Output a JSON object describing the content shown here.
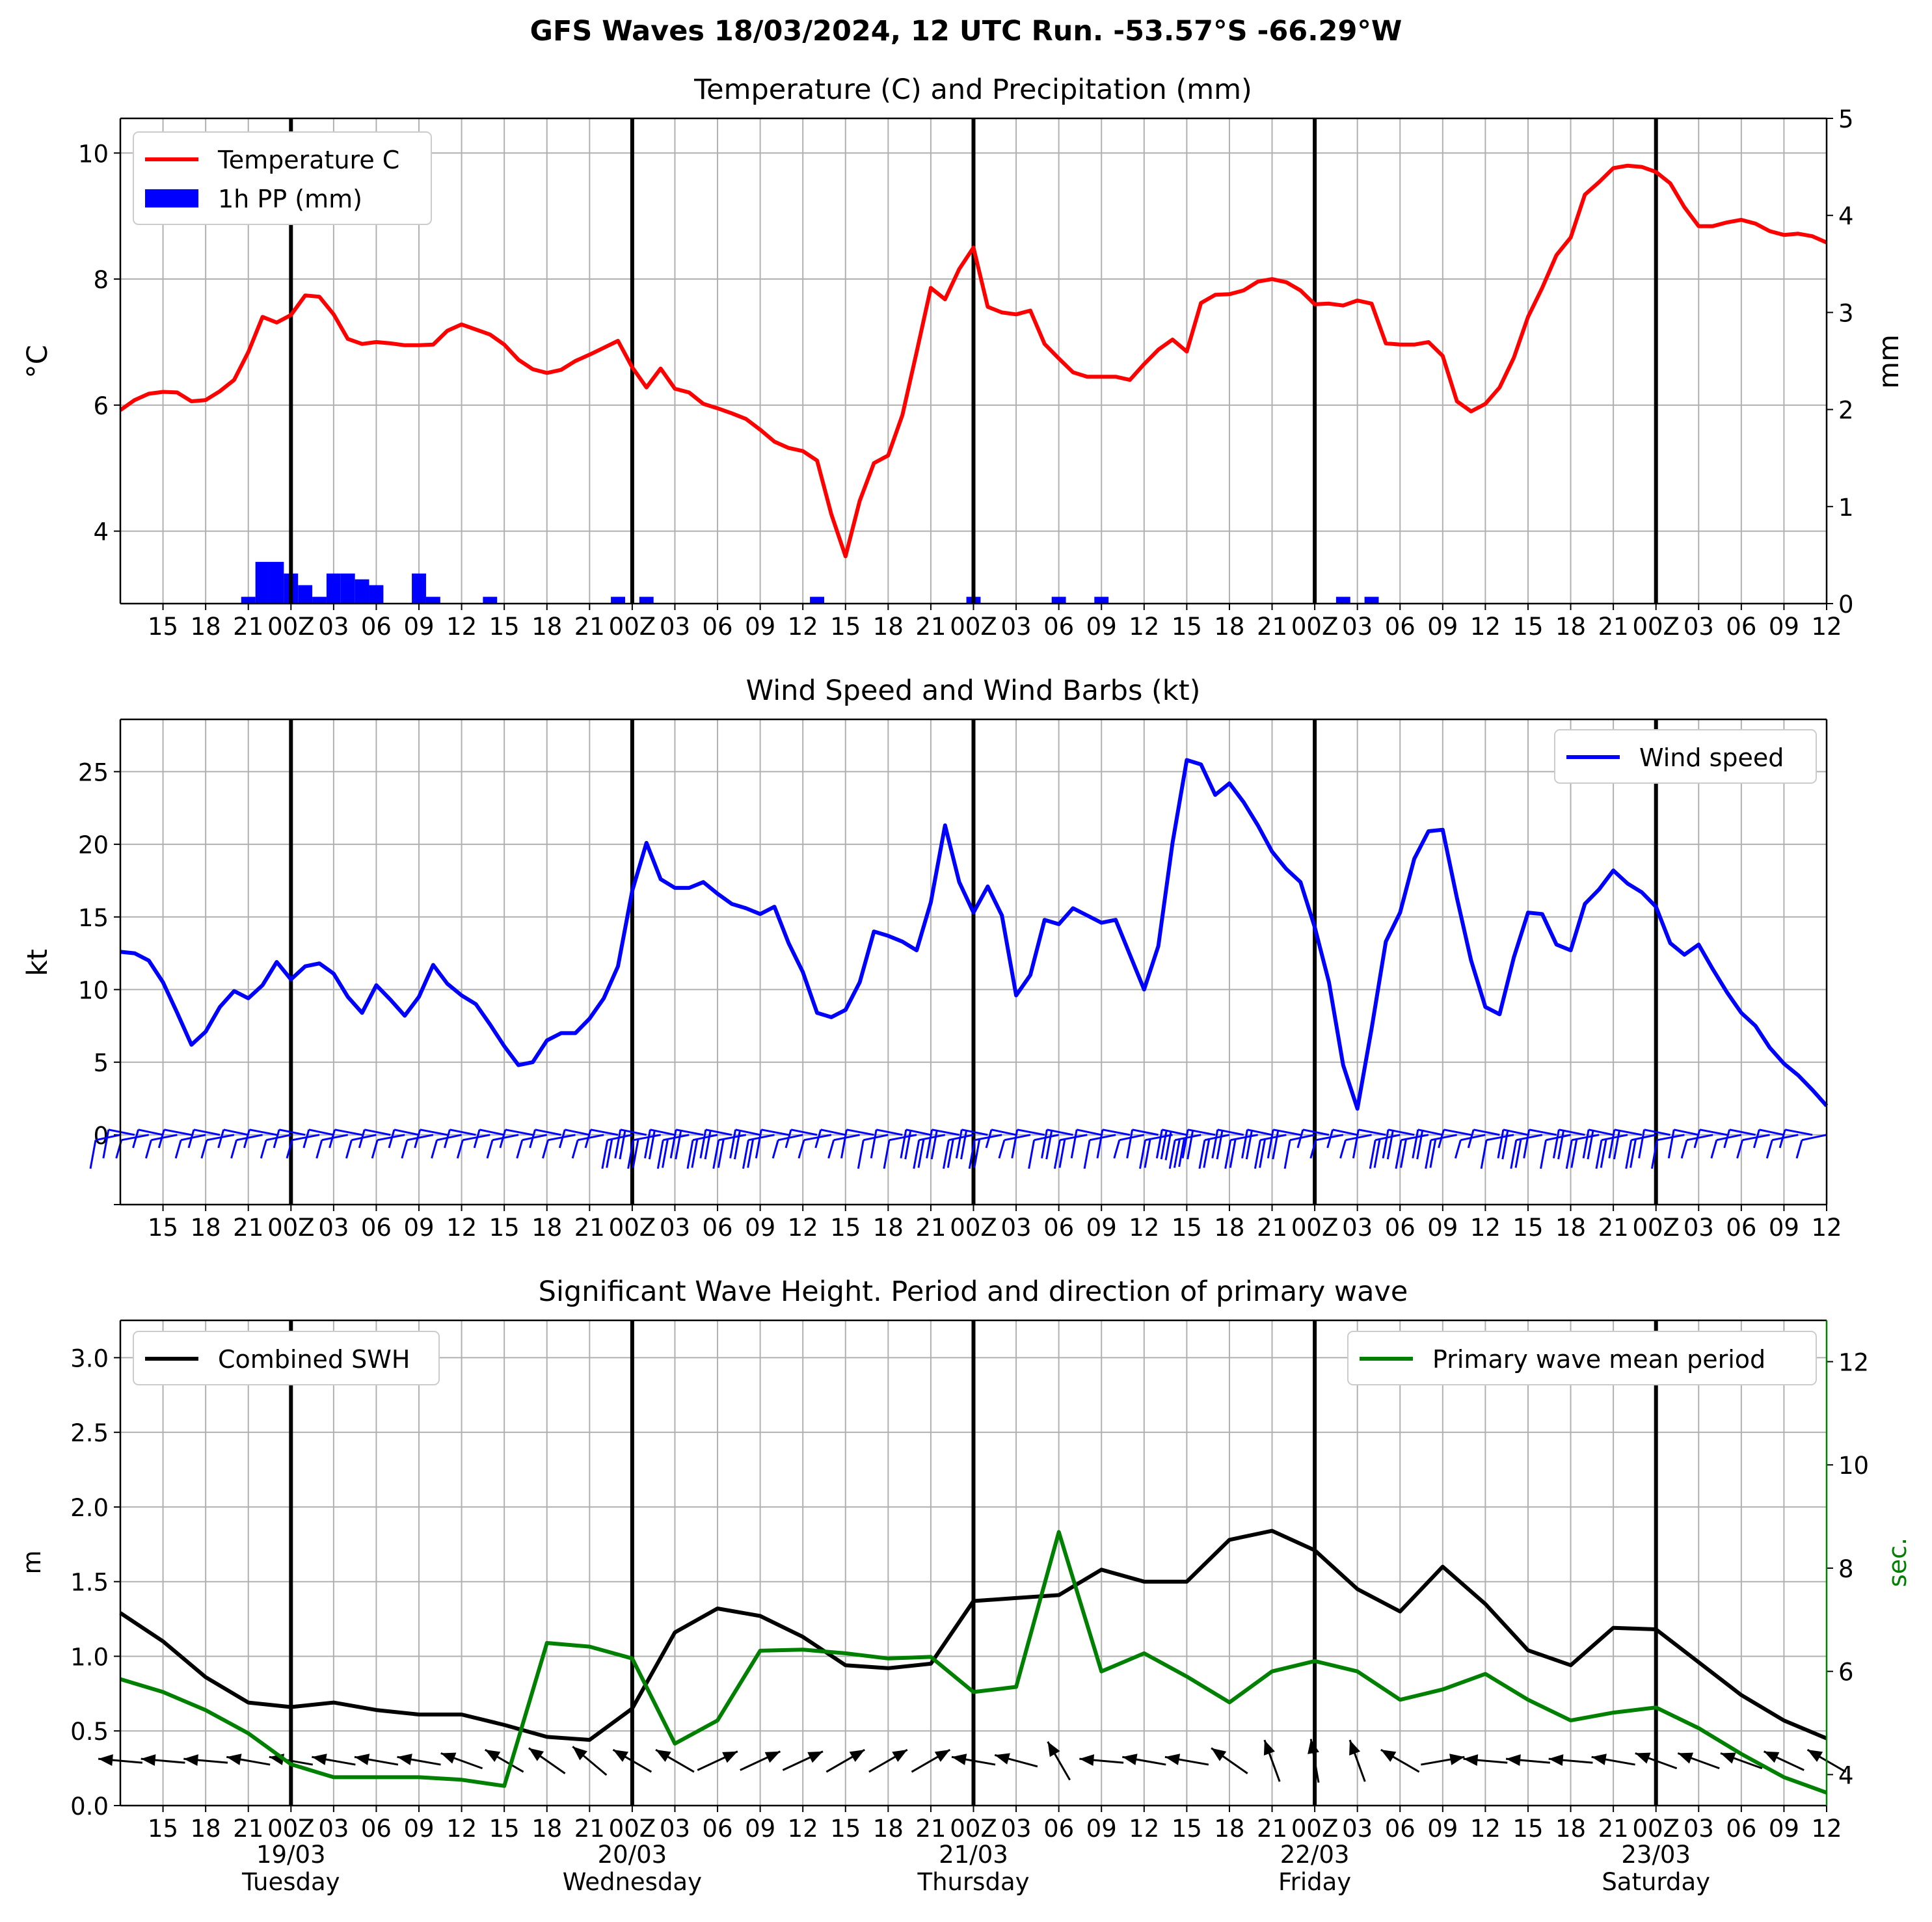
{
  "figure": {
    "suptitle": "GFS Waves 18/03/2024, 12 UTC Run. -53.57°S -66.29°W"
  },
  "time_axis": {
    "tick_labels": [
      "15",
      "18",
      "21",
      "00Z",
      "03",
      "06",
      "09",
      "12",
      "15",
      "18",
      "21",
      "00Z",
      "03",
      "06",
      "09",
      "12",
      "15",
      "18",
      "21",
      "00Z",
      "03",
      "06",
      "09",
      "12",
      "15",
      "18",
      "21",
      "00Z",
      "03",
      "06",
      "09",
      "12",
      "15",
      "18",
      "21",
      "00Z",
      "03",
      "06",
      "09",
      "12"
    ],
    "day_labels": [
      {
        "date": "19/03",
        "weekday": "Tuesday"
      },
      {
        "date": "20/03",
        "weekday": "Wednesday"
      },
      {
        "date": "21/03",
        "weekday": "Thursday"
      },
      {
        "date": "22/03",
        "weekday": "Friday"
      },
      {
        "date": "23/03",
        "weekday": "Saturday"
      }
    ]
  },
  "chart_data": [
    {
      "type": "line",
      "title": "Temperature (C) and Precipitation (mm)",
      "x_unit": "hours from 18/03/2024 12 UTC",
      "ylabel": "$^\\circ$C",
      "ylabel_text": "°C",
      "ylim": [
        2.85,
        10.55
      ],
      "yticks": [
        "4",
        "6",
        "8",
        "10"
      ],
      "y2label": "mm",
      "y2lim": [
        0,
        5
      ],
      "y2ticks": [
        "0",
        "1",
        "2",
        "3",
        "4",
        "5"
      ],
      "legend": [
        "Temperature C",
        "1h PP (mm)"
      ],
      "colors": {
        "temperature": "#ff0000",
        "precip": "#0000ff"
      },
      "series": [
        {
          "name": "Temperature C",
          "x": [
            0,
            1,
            2,
            3,
            4,
            5,
            6,
            7,
            8,
            9,
            10,
            11,
            12,
            13,
            14,
            15,
            16,
            17,
            18,
            19,
            20,
            21,
            22,
            23,
            24,
            25,
            26,
            27,
            28,
            29,
            30,
            31,
            32,
            33,
            34,
            35,
            36,
            37,
            38,
            39,
            40,
            41,
            42,
            43,
            44,
            45,
            46,
            47,
            48,
            49,
            50,
            51,
            52,
            53,
            54,
            55,
            56,
            57,
            58,
            59,
            60,
            61,
            62,
            63,
            64,
            65,
            66,
            67,
            68,
            69,
            70,
            71,
            72,
            73,
            74,
            75,
            76,
            77,
            78,
            79,
            80,
            81,
            82,
            83,
            84,
            85,
            86,
            87,
            88,
            89,
            90,
            91,
            92,
            93,
            94,
            95,
            96,
            97,
            98,
            99,
            100,
            101,
            102,
            103,
            104,
            105,
            106,
            107,
            108,
            109,
            110,
            111,
            112,
            113,
            114,
            115,
            116,
            117,
            118,
            119,
            120
          ],
          "values": [
            5.92,
            6.08,
            6.18,
            6.21,
            6.2,
            6.06,
            6.08,
            6.22,
            6.4,
            6.84,
            7.4,
            7.31,
            7.43,
            7.74,
            7.72,
            7.44,
            7.05,
            6.97,
            7.0,
            6.98,
            6.95,
            6.95,
            6.96,
            7.18,
            7.28,
            7.2,
            7.12,
            6.96,
            6.72,
            6.57,
            6.51,
            6.56,
            6.7,
            6.8,
            6.91,
            7.02,
            6.6,
            6.28,
            6.58,
            6.26,
            6.2,
            6.02,
            5.95,
            5.87,
            5.78,
            5.61,
            5.42,
            5.32,
            5.27,
            5.12,
            4.27,
            3.6,
            4.48,
            5.08,
            5.2,
            5.84,
            6.84,
            7.86,
            7.68,
            8.16,
            8.5,
            7.56,
            7.47,
            7.44,
            7.5,
            6.97,
            6.74,
            6.52,
            6.45,
            6.45,
            6.45,
            6.4,
            6.65,
            6.88,
            7.04,
            6.85,
            7.62,
            7.75,
            7.76,
            7.82,
            7.96,
            8.0,
            7.95,
            7.82,
            7.6,
            7.61,
            7.58,
            7.66,
            7.61,
            6.98,
            6.96,
            6.96,
            7.0,
            6.78,
            6.06,
            5.9,
            6.02,
            6.28,
            6.75,
            7.4,
            7.86,
            8.38,
            8.66,
            9.34,
            9.54,
            9.76,
            9.8,
            9.78,
            9.7,
            9.52,
            9.14,
            8.84,
            8.84,
            8.9,
            8.94,
            8.88,
            8.76,
            8.7,
            8.72,
            8.68,
            8.58
          ]
        },
        {
          "name": "1h PP (mm)",
          "type": "bar",
          "x": [
            9,
            10,
            11,
            12,
            13,
            14,
            15,
            16,
            17,
            18,
            19,
            20,
            21,
            22,
            23,
            24,
            25,
            26,
            27,
            28,
            29,
            30,
            31,
            32,
            33,
            34,
            35,
            36,
            37,
            38,
            39,
            40,
            41,
            42,
            43,
            44,
            45,
            46,
            47,
            48,
            49,
            50,
            51,
            52,
            53,
            54,
            55,
            56,
            57,
            58,
            59,
            60,
            61,
            62,
            63,
            64,
            65,
            66,
            67,
            68,
            69,
            70,
            71,
            72,
            73,
            74,
            75,
            76,
            77,
            78,
            79,
            80,
            81,
            82,
            83,
            84,
            85,
            86,
            87,
            88,
            89,
            90,
            91,
            92,
            93,
            94,
            95
          ],
          "values": [
            0.07,
            0.43,
            0.43,
            0.31,
            0.19,
            0.07,
            0.31,
            0.31,
            0.25,
            0.19,
            0,
            0,
            0.31,
            0.07,
            0,
            0,
            0,
            0.07,
            0,
            0,
            0,
            0,
            0,
            0,
            0,
            0,
            0.07,
            0,
            0.07,
            0,
            0,
            0,
            0,
            0,
            0,
            0,
            0,
            0,
            0,
            0,
            0.07,
            0,
            0,
            0,
            0,
            0,
            0,
            0,
            0,
            0,
            0,
            0.07,
            0,
            0,
            0,
            0,
            0,
            0.07,
            0,
            0,
            0.07,
            0,
            0,
            0,
            0,
            0,
            0,
            0,
            0,
            0,
            0,
            0,
            0,
            0,
            0,
            0,
            0,
            0.07,
            0,
            0.07,
            0,
            0,
            0,
            0,
            0,
            0,
            0
          ]
        }
      ]
    },
    {
      "type": "line",
      "title": "Wind Speed and Wind Barbs (kt)",
      "x_unit": "hours from 18/03/2024 12 UTC",
      "ylabel": "kt",
      "ylim": [
        -4.8,
        28.6
      ],
      "yticks": [
        "0",
        "5",
        "10",
        "15",
        "20",
        "25"
      ],
      "legend": [
        "Wind speed"
      ],
      "colors": {
        "wind": "#0000ff",
        "barbs": "#0000ff"
      },
      "series": [
        {
          "name": "Wind speed",
          "x": [
            0,
            1,
            2,
            3,
            4,
            5,
            6,
            7,
            8,
            9,
            10,
            11,
            12,
            13,
            14,
            15,
            16,
            17,
            18,
            19,
            20,
            21,
            22,
            23,
            24,
            25,
            26,
            27,
            28,
            29,
            30,
            31,
            32,
            33,
            34,
            35,
            36,
            37,
            38,
            39,
            40,
            41,
            42,
            43,
            44,
            45,
            46,
            47,
            48,
            49,
            50,
            51,
            52,
            53,
            54,
            55,
            56,
            57,
            58,
            59,
            60,
            61,
            62,
            63,
            64,
            65,
            66,
            67,
            68,
            69,
            70,
            71,
            72,
            73,
            74,
            75,
            76,
            77,
            78,
            79,
            80,
            81,
            82,
            83,
            84,
            85,
            86,
            87,
            88,
            89,
            90,
            91,
            92,
            93,
            94,
            95,
            96,
            97,
            98,
            99,
            100,
            101,
            102,
            103,
            104,
            105,
            106,
            107,
            108,
            109,
            110,
            111,
            112,
            113,
            114,
            115,
            116,
            117,
            118,
            119,
            120
          ],
          "values": [
            12.6,
            12.5,
            12.0,
            10.5,
            8.4,
            6.2,
            7.1,
            8.8,
            9.9,
            9.4,
            10.3,
            11.9,
            10.7,
            11.6,
            11.8,
            11.1,
            9.5,
            8.4,
            10.3,
            9.3,
            8.2,
            9.5,
            11.7,
            10.4,
            9.6,
            9.0,
            7.6,
            6.1,
            4.8,
            5.0,
            6.5,
            7.0,
            7.0,
            8.0,
            9.4,
            11.6,
            16.8,
            20.1,
            17.6,
            17.0,
            17.0,
            17.4,
            16.6,
            15.9,
            15.6,
            15.2,
            15.7,
            13.2,
            11.2,
            8.4,
            8.1,
            8.6,
            10.5,
            14.0,
            13.7,
            13.3,
            12.7,
            16.0,
            21.3,
            17.4,
            15.3,
            17.1,
            15.1,
            9.6,
            11.0,
            14.8,
            14.5,
            15.6,
            15.1,
            14.6,
            14.8,
            12.4,
            10.0,
            13.0,
            20.1,
            25.8,
            25.5,
            23.4,
            24.2,
            22.9,
            21.3,
            19.5,
            18.3,
            17.4,
            14.3,
            10.5,
            4.8,
            1.8,
            7.3,
            13.3,
            15.3,
            19.0,
            20.9,
            21.0,
            16.3,
            12.0,
            8.8,
            8.3,
            12.2,
            15.3,
            15.2,
            13.1,
            12.7,
            15.9,
            16.9,
            18.2,
            17.3,
            16.7,
            15.7,
            13.2,
            12.4,
            13.1,
            11.4,
            9.8,
            8.4,
            7.5,
            6.0,
            4.9,
            4.1,
            3.1,
            2.0
          ]
        }
      ]
    },
    {
      "type": "line",
      "title": "Significant Wave Height. Period and direction of primary wave",
      "x_unit": "hours from 18/03/2024 12 UTC",
      "ylabel": "m",
      "ylim": [
        0,
        3.25
      ],
      "yticks": [
        "0.0",
        "0.5",
        "1.0",
        "1.5",
        "2.0",
        "2.5",
        "3.0"
      ],
      "y2label": "sec.",
      "y2lim": [
        3.4,
        12.8
      ],
      "y2ticks": [
        "4",
        "6",
        "8",
        "10",
        "12"
      ],
      "legend": [
        "Combined SWH",
        "Primary wave mean period"
      ],
      "colors": {
        "swh": "#000000",
        "period": "#008000",
        "arrows": "#000000"
      },
      "series": [
        {
          "name": "Combined SWH",
          "x": [
            0,
            3,
            6,
            9,
            12,
            15,
            18,
            21,
            24,
            27,
            30,
            33,
            36,
            39,
            42,
            45,
            48,
            51,
            54,
            57,
            60,
            63,
            66,
            69,
            72,
            75,
            78,
            81,
            84,
            87,
            90,
            93,
            96,
            99,
            102,
            105,
            108,
            111,
            114,
            117,
            120
          ],
          "values": [
            1.29,
            1.1,
            0.86,
            0.69,
            0.66,
            0.69,
            0.64,
            0.61,
            0.61,
            0.54,
            0.46,
            0.44,
            0.65,
            1.16,
            1.32,
            1.27,
            1.13,
            0.94,
            0.92,
            0.95,
            1.37,
            1.39,
            1.41,
            1.58,
            1.5,
            1.5,
            1.78,
            1.84,
            1.71,
            1.45,
            1.3,
            1.6,
            1.35,
            1.04,
            0.94,
            1.19,
            1.18,
            0.96,
            0.74,
            0.57,
            0.45
          ]
        },
        {
          "name": "Primary wave mean period",
          "x": [
            0,
            3,
            6,
            9,
            12,
            15,
            18,
            21,
            24,
            27,
            30,
            33,
            36,
            39,
            42,
            45,
            48,
            51,
            54,
            57,
            60,
            63,
            66,
            69,
            72,
            75,
            78,
            81,
            84,
            87,
            90,
            93,
            96,
            99,
            102,
            105,
            108,
            111,
            114,
            117,
            120
          ],
          "values": [
            5.85,
            5.6,
            5.25,
            4.8,
            4.2,
            3.95,
            3.95,
            3.95,
            3.9,
            3.78,
            6.55,
            6.48,
            6.25,
            4.6,
            5.05,
            6.4,
            6.42,
            6.35,
            6.25,
            6.28,
            5.6,
            5.7,
            8.7,
            6.0,
            6.35,
            5.9,
            5.4,
            6.0,
            6.2,
            6.0,
            5.45,
            5.65,
            5.95,
            5.45,
            5.05,
            5.2,
            5.3,
            4.9,
            4.4,
            3.95,
            3.65
          ]
        },
        {
          "name": "Primary wave direction arrows",
          "x": [
            0,
            3,
            6,
            9,
            12,
            15,
            18,
            21,
            24,
            27,
            30,
            33,
            36,
            39,
            42,
            45,
            48,
            51,
            54,
            57,
            60,
            63,
            66,
            69,
            72,
            75,
            78,
            81,
            84,
            87,
            90,
            93,
            96,
            99,
            102,
            105,
            108,
            111,
            114,
            117,
            120
          ],
          "direction_deg": [
            275,
            275,
            275,
            280,
            280,
            280,
            280,
            280,
            290,
            300,
            305,
            310,
            300,
            300,
            65,
            65,
            65,
            60,
            60,
            60,
            280,
            285,
            330,
            275,
            280,
            280,
            305,
            340,
            350,
            340,
            300,
            80,
            275,
            275,
            275,
            280,
            290,
            290,
            290,
            295,
            300
          ]
        }
      ]
    }
  ]
}
